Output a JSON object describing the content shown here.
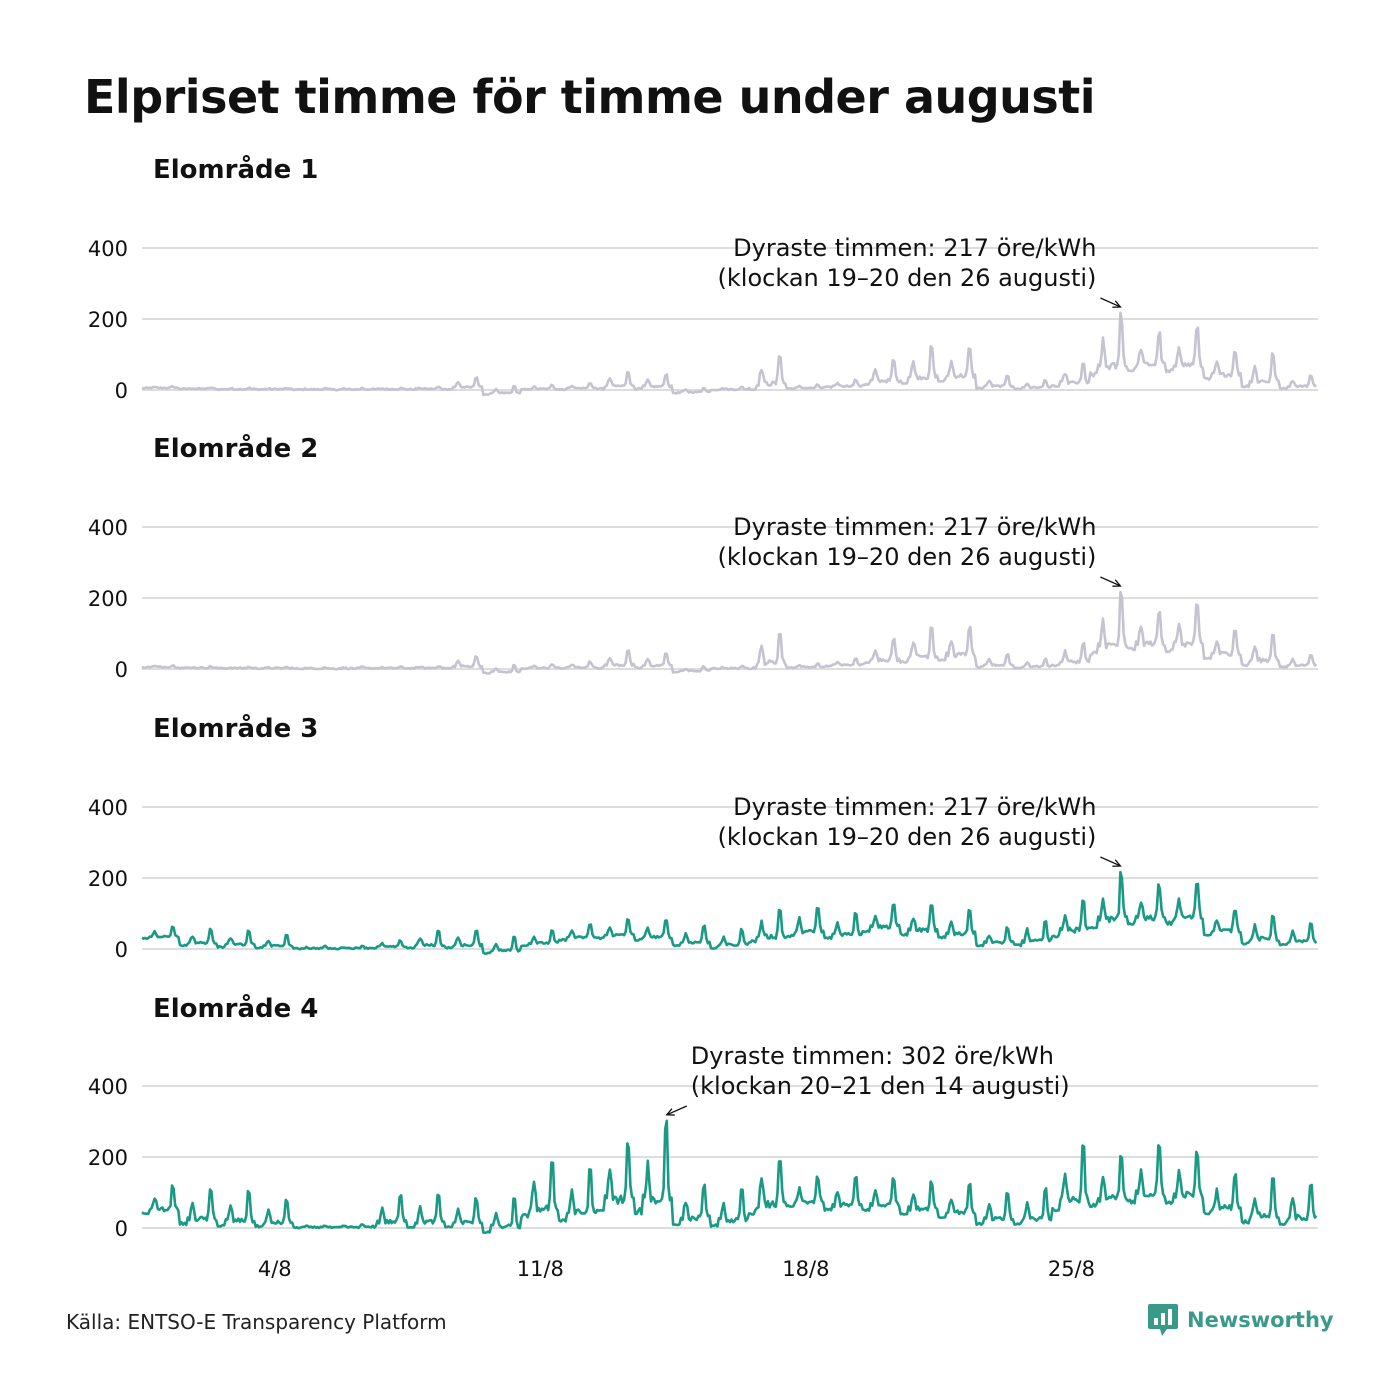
{
  "title": "Elpriset timme för timme under augusti",
  "source": "Källa: ENTSO-E Transparency Platform",
  "brand": {
    "name": "Newsworthy",
    "icon": "newsworthy-logo-icon",
    "color": "#3a9a8a"
  },
  "colors": {
    "grey_series": "#c4c3d0",
    "teal_series": "#1a9a85",
    "grid": "#dddddd"
  },
  "chart_data": [
    {
      "type": "line",
      "title": "Elområde 1",
      "color": "#c4c3d0",
      "ylim": [
        0,
        400
      ],
      "yticks": [
        "0",
        "200",
        "400"
      ],
      "xticks": [
        {
          "label": "4/8",
          "day": 4
        },
        {
          "label": "11/8",
          "day": 11
        },
        {
          "label": "18/8",
          "day": 18
        },
        {
          "label": "25/8",
          "day": 25
        }
      ],
      "x_range_days": [
        1,
        31
      ],
      "daily_peak_ore_kwh": [
        10,
        7,
        6,
        5,
        5,
        6,
        6,
        9,
        40,
        12,
        15,
        22,
        58,
        48,
        8,
        8,
        110,
        15,
        30,
        90,
        130,
        125,
        45,
        30,
        80,
        217,
        170,
        190,
        120,
        110,
        45
      ],
      "daily_trough_ore_kwh": [
        5,
        3,
        2,
        2,
        1,
        1,
        2,
        2,
        2,
        -12,
        1,
        2,
        3,
        3,
        -8,
        1,
        2,
        4,
        8,
        15,
        20,
        25,
        5,
        3,
        10,
        40,
        55,
        50,
        30,
        10,
        5
      ],
      "annotation": {
        "line1": "Dyraste timmen: 217 öre/kWh",
        "line2": "(klockan 19–20 den 26 augusti)",
        "value": 217,
        "day": 26,
        "hour": 19
      }
    },
    {
      "type": "line",
      "title": "Elområde 2",
      "color": "#c4c3d0",
      "ylim": [
        0,
        400
      ],
      "yticks": [
        "0",
        "200",
        "400"
      ],
      "xticks": [
        {
          "label": "4/8",
          "day": 4
        },
        {
          "label": "11/8",
          "day": 11
        },
        {
          "label": "18/8",
          "day": 18
        },
        {
          "label": "25/8",
          "day": 25
        }
      ],
      "x_range_days": [
        1,
        31
      ],
      "daily_peak_ore_kwh": [
        10,
        7,
        6,
        5,
        5,
        6,
        6,
        9,
        40,
        12,
        15,
        22,
        58,
        48,
        8,
        8,
        110,
        15,
        30,
        90,
        130,
        125,
        45,
        30,
        80,
        217,
        170,
        190,
        120,
        110,
        45
      ],
      "daily_trough_ore_kwh": [
        5,
        3,
        2,
        2,
        1,
        1,
        2,
        2,
        2,
        -12,
        1,
        2,
        3,
        3,
        -8,
        1,
        2,
        4,
        8,
        15,
        20,
        25,
        5,
        3,
        10,
        40,
        55,
        50,
        30,
        10,
        5
      ],
      "annotation": {
        "line1": "Dyraste timmen: 217 öre/kWh",
        "line2": "(klockan 19–20 den 26 augusti)",
        "value": 217,
        "day": 26,
        "hour": 19
      }
    },
    {
      "type": "line",
      "title": "Elområde 3",
      "color": "#1a9a85",
      "ylim": [
        0,
        400
      ],
      "yticks": [
        "0",
        "200",
        "400"
      ],
      "xticks": [
        {
          "label": "4/8",
          "day": 4
        },
        {
          "label": "11/8",
          "day": 11
        },
        {
          "label": "18/8",
          "day": 18
        },
        {
          "label": "25/8",
          "day": 25
        }
      ],
      "x_range_days": [
        1,
        31
      ],
      "daily_peak_ore_kwh": [
        65,
        60,
        55,
        42,
        8,
        10,
        25,
        55,
        55,
        40,
        55,
        75,
        90,
        85,
        70,
        60,
        120,
        125,
        110,
        135,
        130,
        120,
        65,
        90,
        155,
        217,
        190,
        200,
        120,
        105,
        80
      ],
      "daily_trough_ore_kwh": [
        30,
        10,
        5,
        3,
        1,
        1,
        3,
        3,
        3,
        -12,
        10,
        25,
        30,
        25,
        10,
        3,
        20,
        35,
        30,
        50,
        40,
        30,
        10,
        10,
        35,
        60,
        70,
        70,
        40,
        15,
        10
      ],
      "annotation": {
        "line1": "Dyraste timmen: 217 öre/kWh",
        "line2": "(klockan 19–20 den 26 augusti)",
        "value": 217,
        "day": 26,
        "hour": 19
      }
    },
    {
      "type": "line",
      "title": "Elområde 4",
      "color": "#1a9a85",
      "ylim": [
        0,
        400
      ],
      "yticks": [
        "0",
        "200",
        "400"
      ],
      "xticks": [
        {
          "label": "4/8",
          "day": 4
        },
        {
          "label": "11/8",
          "day": 11
        },
        {
          "label": "18/8",
          "day": 18
        },
        {
          "label": "25/8",
          "day": 25
        }
      ],
      "x_range_days": [
        1,
        31
      ],
      "daily_peak_ore_kwh": [
        125,
        115,
        110,
        85,
        8,
        10,
        100,
        100,
        90,
        90,
        195,
        175,
        255,
        302,
        130,
        115,
        215,
        150,
        150,
        150,
        140,
        130,
        110,
        120,
        250,
        215,
        245,
        225,
        160,
        150,
        140
      ],
      "daily_trough_ore_kwh": [
        40,
        10,
        5,
        3,
        1,
        1,
        3,
        3,
        3,
        -12,
        30,
        20,
        50,
        40,
        10,
        5,
        40,
        60,
        50,
        50,
        40,
        30,
        10,
        10,
        50,
        60,
        70,
        70,
        40,
        15,
        10
      ],
      "annotation": {
        "line1": "Dyraste timmen: 302 öre/kWh",
        "line2": "(klockan 20–21 den 14 augusti)",
        "value": 302,
        "day": 14,
        "hour": 20
      }
    }
  ]
}
